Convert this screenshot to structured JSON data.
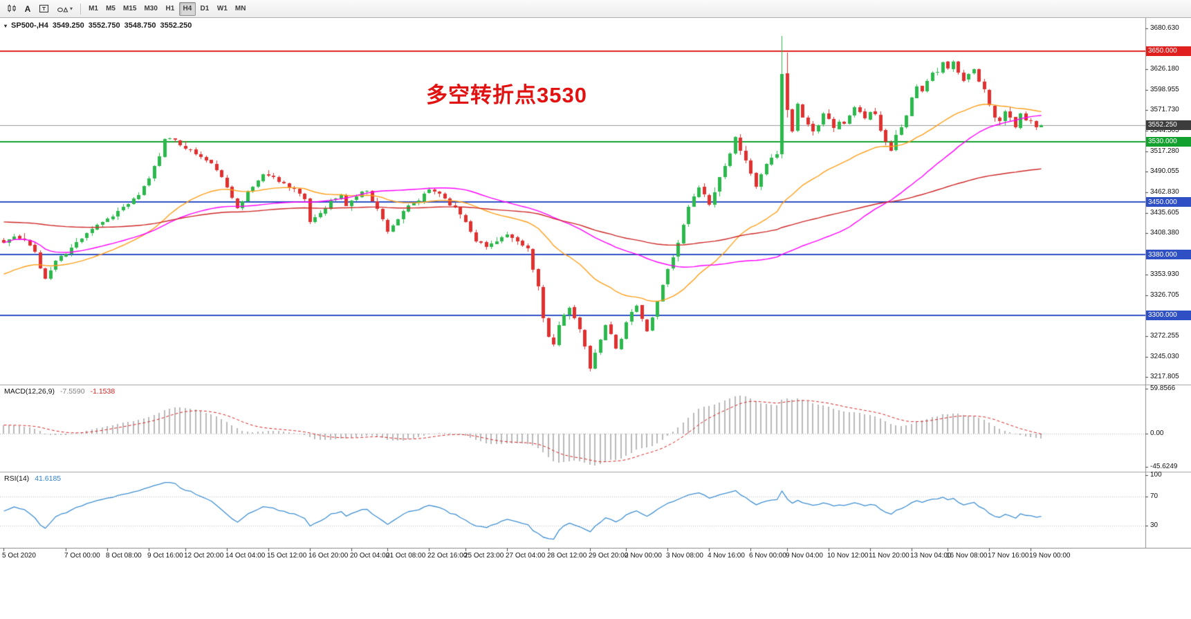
{
  "toolbar": {
    "tools": [
      {
        "name": "candlestick-chart-tool"
      },
      {
        "name": "text-label-tool",
        "label": "A"
      },
      {
        "name": "text-box-tool"
      },
      {
        "name": "shapes-tool"
      }
    ],
    "timeframes": [
      {
        "label": "M1"
      },
      {
        "label": "M5"
      },
      {
        "label": "M15"
      },
      {
        "label": "M30"
      },
      {
        "label": "H1"
      },
      {
        "label": "H4",
        "active": true
      },
      {
        "label": "D1"
      },
      {
        "label": "W1"
      },
      {
        "label": "MN"
      }
    ]
  },
  "annotation": {
    "text": "多空转折点3530",
    "color": "#e11212"
  },
  "chart_data": {
    "type": "candlestick",
    "symbol": "SP500-",
    "timeframe": "H4",
    "header": {
      "title": "SP500-,H4",
      "open": "3549.250",
      "high": "3552.750",
      "low": "3548.750",
      "close": "3552.250"
    },
    "price_scale": {
      "top": 3694,
      "bottom": 3208
    },
    "bars": {
      "count": 201,
      "first_x": 5,
      "spacing": 7.5,
      "body_width": 5
    },
    "colors": {
      "candle_up": "#2db84d",
      "candle_down": "#e03131"
    },
    "y_ticks": [
      "3680.630",
      "3626.180",
      "3598.955",
      "3571.730",
      "3544.505",
      "3517.280",
      "3490.055",
      "3462.830",
      "3435.605",
      "3408.380",
      "3353.930",
      "3326.705",
      "3272.255",
      "3245.030",
      "3217.805"
    ],
    "levels": [
      {
        "price": "3650.000",
        "color": "#e01f1f"
      },
      {
        "price": "3552.250",
        "color": "#3c3c3c",
        "current": true
      },
      {
        "price": "3530.000",
        "color": "#12a12e"
      },
      {
        "price": "3450.000",
        "color": "#2e50c4"
      },
      {
        "price": "3380.000",
        "color": "#2e50c4"
      },
      {
        "price": "3300.000",
        "color": "#2e50c4"
      }
    ],
    "moving_averages": [
      {
        "name": "ma-fast",
        "type": "ema",
        "period": 34,
        "start_value": 3352,
        "color": "#ff9f1a"
      },
      {
        "name": "ma-mid",
        "type": "sma",
        "period": 60,
        "color": "#ff00ff"
      },
      {
        "name": "ma-slow",
        "type": "ema",
        "period": 150,
        "start_value": 3424,
        "color": "#cf2626"
      }
    ],
    "price_path": [
      [
        0,
        3396
      ],
      [
        2,
        3404
      ],
      [
        4,
        3398
      ],
      [
        6,
        3386
      ],
      [
        7,
        3362
      ],
      [
        8,
        3348
      ],
      [
        10,
        3372
      ],
      [
        12,
        3382
      ],
      [
        14,
        3396
      ],
      [
        16,
        3410
      ],
      [
        18,
        3420
      ],
      [
        20,
        3428
      ],
      [
        22,
        3438
      ],
      [
        24,
        3448
      ],
      [
        26,
        3458
      ],
      [
        28,
        3482
      ],
      [
        30,
        3512
      ],
      [
        31,
        3536
      ],
      [
        33,
        3530
      ],
      [
        35,
        3522
      ],
      [
        37,
        3514
      ],
      [
        39,
        3505
      ],
      [
        41,
        3494
      ],
      [
        43,
        3468
      ],
      [
        45,
        3444
      ],
      [
        47,
        3462
      ],
      [
        49,
        3478
      ],
      [
        50,
        3488
      ],
      [
        52,
        3482
      ],
      [
        54,
        3474
      ],
      [
        56,
        3468
      ],
      [
        58,
        3452
      ],
      [
        59,
        3424
      ],
      [
        61,
        3436
      ],
      [
        63,
        3452
      ],
      [
        65,
        3458
      ],
      [
        66,
        3446
      ],
      [
        68,
        3458
      ],
      [
        70,
        3466
      ],
      [
        72,
        3440
      ],
      [
        74,
        3412
      ],
      [
        76,
        3428
      ],
      [
        78,
        3444
      ],
      [
        80,
        3452
      ],
      [
        82,
        3466
      ],
      [
        84,
        3462
      ],
      [
        86,
        3448
      ],
      [
        88,
        3434
      ],
      [
        89,
        3424
      ],
      [
        91,
        3400
      ],
      [
        93,
        3390
      ],
      [
        95,
        3400
      ],
      [
        97,
        3406
      ],
      [
        99,
        3396
      ],
      [
        101,
        3388
      ],
      [
        102,
        3360
      ],
      [
        103,
        3338
      ],
      [
        104,
        3298
      ],
      [
        105,
        3270
      ],
      [
        106,
        3260
      ],
      [
        107,
        3284
      ],
      [
        108,
        3300
      ],
      [
        109,
        3312
      ],
      [
        110,
        3298
      ],
      [
        111,
        3280
      ],
      [
        112,
        3256
      ],
      [
        113,
        3230
      ],
      [
        114,
        3248
      ],
      [
        115,
        3268
      ],
      [
        116,
        3286
      ],
      [
        117,
        3274
      ],
      [
        118,
        3258
      ],
      [
        119,
        3270
      ],
      [
        120,
        3290
      ],
      [
        121,
        3304
      ],
      [
        122,
        3312
      ],
      [
        123,
        3296
      ],
      [
        124,
        3278
      ],
      [
        125,
        3298
      ],
      [
        126,
        3320
      ],
      [
        127,
        3340
      ],
      [
        128,
        3362
      ],
      [
        129,
        3378
      ],
      [
        130,
        3394
      ],
      [
        131,
        3418
      ],
      [
        132,
        3442
      ],
      [
        133,
        3460
      ],
      [
        134,
        3470
      ],
      [
        135,
        3458
      ],
      [
        136,
        3446
      ],
      [
        137,
        3462
      ],
      [
        138,
        3482
      ],
      [
        139,
        3500
      ],
      [
        140,
        3514
      ],
      [
        141,
        3536
      ],
      [
        142,
        3520
      ],
      [
        143,
        3504
      ],
      [
        144,
        3490
      ],
      [
        145,
        3472
      ],
      [
        146,
        3484
      ],
      [
        147,
        3500
      ],
      [
        148,
        3508
      ],
      [
        149,
        3512
      ],
      [
        150,
        3618
      ],
      [
        151,
        3570
      ],
      [
        152,
        3546
      ],
      [
        153,
        3582
      ],
      [
        154,
        3562
      ],
      [
        155,
        3554
      ],
      [
        156,
        3544
      ],
      [
        157,
        3552
      ],
      [
        158,
        3570
      ],
      [
        159,
        3562
      ],
      [
        160,
        3548
      ],
      [
        161,
        3558
      ],
      [
        162,
        3554
      ],
      [
        163,
        3564
      ],
      [
        164,
        3576
      ],
      [
        165,
        3570
      ],
      [
        166,
        3560
      ],
      [
        167,
        3570
      ],
      [
        168,
        3564
      ],
      [
        169,
        3546
      ],
      [
        170,
        3530
      ],
      [
        171,
        3520
      ],
      [
        172,
        3538
      ],
      [
        173,
        3550
      ],
      [
        174,
        3564
      ],
      [
        175,
        3588
      ],
      [
        176,
        3606
      ],
      [
        177,
        3598
      ],
      [
        178,
        3612
      ],
      [
        179,
        3620
      ],
      [
        180,
        3624
      ],
      [
        181,
        3634
      ],
      [
        182,
        3628
      ],
      [
        183,
        3636
      ],
      [
        184,
        3620
      ],
      [
        185,
        3610
      ],
      [
        186,
        3618
      ],
      [
        187,
        3628
      ],
      [
        188,
        3612
      ],
      [
        189,
        3598
      ],
      [
        190,
        3580
      ],
      [
        191,
        3564
      ],
      [
        192,
        3558
      ],
      [
        193,
        3572
      ],
      [
        194,
        3560
      ],
      [
        195,
        3548
      ],
      [
        196,
        3566
      ],
      [
        197,
        3558
      ],
      [
        198,
        3556
      ],
      [
        199,
        3548
      ],
      [
        200,
        3552.25
      ]
    ],
    "wick_overrides": [
      [
        150,
        3670,
        3508
      ],
      [
        151,
        3648,
        3562
      ]
    ],
    "time_axis": [
      {
        "label": "5 Oct 2020",
        "bar": 0
      },
      {
        "label": "7 Oct 00:00",
        "bar": 12
      },
      {
        "label": "8 Oct 08:00",
        "bar": 20
      },
      {
        "label": "9 Oct 16:00",
        "bar": 28
      },
      {
        "label": "12 Oct 20:00",
        "bar": 35
      },
      {
        "label": "14 Oct 04:00",
        "bar": 43
      },
      {
        "label": "15 Oct 12:00",
        "bar": 51
      },
      {
        "label": "16 Oct 20:00",
        "bar": 59
      },
      {
        "label": "20 Oct 04:00",
        "bar": 67
      },
      {
        "label": "21 Oct 08:00",
        "bar": 74
      },
      {
        "label": "22 Oct 16:00",
        "bar": 82
      },
      {
        "label": "25 Oct 23:00",
        "bar": 89
      },
      {
        "label": "27 Oct 04:00",
        "bar": 97
      },
      {
        "label": "28 Oct 12:00",
        "bar": 105
      },
      {
        "label": "29 Oct 20:00",
        "bar": 113
      },
      {
        "label": "2 Nov 00:00",
        "bar": 120
      },
      {
        "label": "3 Nov 08:00",
        "bar": 128
      },
      {
        "label": "4 Nov 16:00",
        "bar": 136
      },
      {
        "label": "6 Nov 00:00",
        "bar": 144
      },
      {
        "label": "9 Nov 04:00",
        "bar": 151
      },
      {
        "label": "10 Nov 12:00",
        "bar": 159
      },
      {
        "label": "11 Nov 20:00",
        "bar": 167
      },
      {
        "label": "13 Nov 04:00",
        "bar": 175
      },
      {
        "label": "16 Nov 08:00",
        "bar": 182
      },
      {
        "label": "17 Nov 16:00",
        "bar": 190
      },
      {
        "label": "19 Nov 00:00",
        "bar": 198
      }
    ],
    "indicators": {
      "macd": {
        "label": "MACD(12,26,9)",
        "value_main": "-7.5590",
        "value_signal": "-1.1538",
        "params": [
          12,
          26,
          9
        ],
        "axis": [
          "59.8566",
          "0.00",
          "-45.6249"
        ],
        "scale": {
          "max": 62,
          "min": -48
        },
        "histogram_color": "#b9b9b9",
        "signal_color": "#d42222"
      },
      "rsi": {
        "label": "RSI(14)",
        "value": "41.6185",
        "period": 14,
        "axis": [
          "100",
          "70",
          "30"
        ],
        "levels": [
          70,
          30
        ],
        "color": "#3f8fd2"
      }
    }
  }
}
